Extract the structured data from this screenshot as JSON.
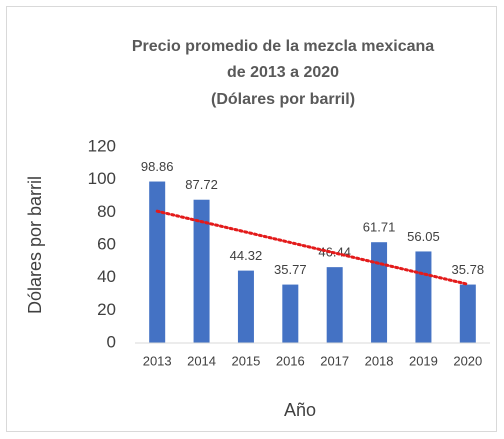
{
  "chart_data": {
    "type": "bar",
    "title": [
      "Precio promedio de la mezcla mexicana",
      "de 2013 a 2020",
      "(Dólares por barril)"
    ],
    "x_label": "Año",
    "y_label": "Dólares por barril",
    "categories": [
      "2013",
      "2014",
      "2015",
      "2016",
      "2017",
      "2018",
      "2019",
      "2020"
    ],
    "values": [
      98.86,
      87.72,
      44.32,
      35.77,
      46.44,
      61.71,
      56.05,
      35.78
    ],
    "color": "#4472c4",
    "ylim": [
      0,
      120
    ],
    "yticks": [
      0,
      20,
      40,
      60,
      80,
      100,
      120
    ],
    "grid": false,
    "trendline": "linear",
    "trendline_color": "#e31b1b"
  }
}
